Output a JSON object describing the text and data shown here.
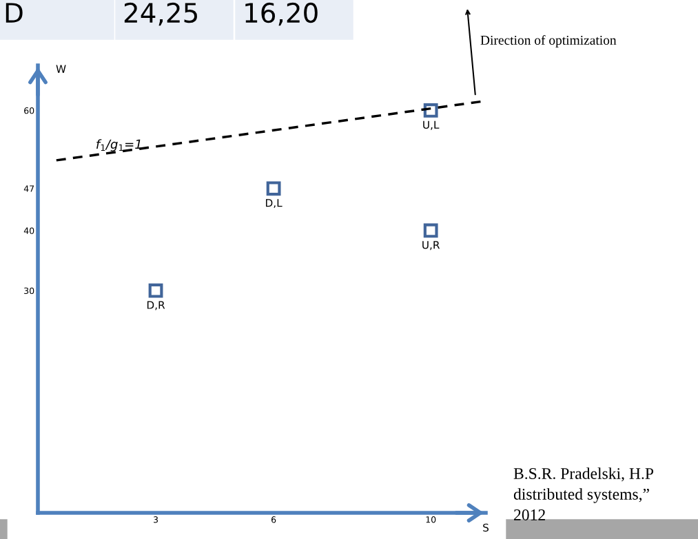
{
  "chart_data": {
    "type": "scatter",
    "xlabel": "S",
    "ylabel": "W",
    "x": [
      3,
      6,
      10,
      10
    ],
    "series": [
      {
        "color": "#41659a",
        "values": [
          30,
          47,
          40,
          60
        ]
      },
      {
        "type": "line",
        "name": "f$_{1}$/g$_{1}$=1",
        "color": "#000000",
        "line_style": "dashed",
        "marker": "none",
        "x": [
          0.47,
          11.3
        ],
        "values": [
          51.7,
          61.5
        ]
      }
    ],
    "marker": "square",
    "xlim": [
      0,
      11.4
    ],
    "ylim": [
      -7,
      67.5
    ],
    "xticks": [
      3,
      6,
      10
    ],
    "yticks": [
      30,
      40,
      47,
      60
    ],
    "grid": false,
    "legend": false,
    "annotations": [
      {
        "text": "D,R",
        "x": 3,
        "y": 30
      },
      {
        "text": "D,L",
        "x": 6,
        "y": 47
      },
      {
        "text": "U,R",
        "x": 10,
        "y": 40
      },
      {
        "text": "U,L",
        "x": 10,
        "y": 60
      },
      "Direction of optimization",
      "D",
      "24,25",
      "16,20",
      "B.S.R. Pradelski, H.P",
      "distributed systems,”",
      "2012"
    ]
  }
}
